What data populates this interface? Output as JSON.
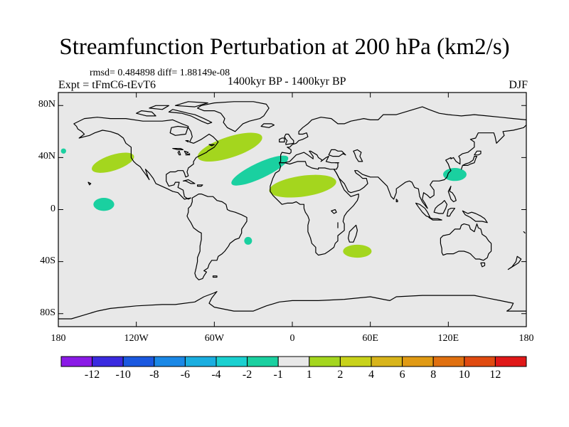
{
  "title": "Streamfunction Perturbation at 200 hPa (km2/s)",
  "subtitle": "rmsd= 0.484898 diff= 1.88149e-08",
  "left_label": "Expt = tFmC6-tEvT6",
  "center_label": "1400kyr BP - 1400kyr BP",
  "right_label": "DJF",
  "map": {
    "projection": "cylindrical equidistant",
    "lon_range": [
      -180,
      180
    ],
    "lat_range": [
      -90,
      90
    ],
    "lat_ticks": [
      {
        "value": 80,
        "label": "80N"
      },
      {
        "value": 40,
        "label": "40N"
      },
      {
        "value": 0,
        "label": "0"
      },
      {
        "value": -40,
        "label": "40S"
      },
      {
        "value": -80,
        "label": "80S"
      }
    ],
    "lon_ticks": [
      {
        "value": -180,
        "label": "180"
      },
      {
        "value": -120,
        "label": "120W"
      },
      {
        "value": -60,
        "label": "60W"
      },
      {
        "value": 0,
        "label": "0"
      },
      {
        "value": 60,
        "label": "60E"
      },
      {
        "value": 120,
        "label": "120E"
      },
      {
        "value": 180,
        "label": "180"
      }
    ],
    "background_color": "#e8e8e8",
    "anomalies": [
      {
        "name": "north-pacific-positive",
        "lon": -138,
        "lat": 36,
        "rlon": 17,
        "rlat": 6,
        "rot": -18,
        "color": "#a4d61e"
      },
      {
        "name": "north-atlantic-positive",
        "lon": -48,
        "lat": 48,
        "rlon": 26,
        "rlat": 8,
        "rot": -18,
        "color": "#a4d61e"
      },
      {
        "name": "north-africa-positive",
        "lon": 8,
        "lat": 18,
        "rlon": 26,
        "rlat": 8,
        "rot": -8,
        "color": "#a4d61e"
      },
      {
        "name": "madagascar-positive",
        "lon": 50,
        "lat": -32,
        "rlon": 11,
        "rlat": 5,
        "rot": 0,
        "color": "#a4d61e"
      },
      {
        "name": "subtropical-atlantic-negative",
        "lon": -25,
        "lat": 30,
        "rlon": 24,
        "rlat": 6,
        "rot": -25,
        "color": "#1ad0a0"
      },
      {
        "name": "east-asia-negative",
        "lon": 125,
        "lat": 27,
        "rlon": 9,
        "rlat": 5,
        "rot": 0,
        "color": "#1ad0a0"
      },
      {
        "name": "tropical-pacific-negative",
        "lon": -145,
        "lat": 4,
        "rlon": 8,
        "rlat": 5,
        "rot": 0,
        "color": "#1ad0a0"
      },
      {
        "name": "south-pacific-negative-small",
        "lon": -34,
        "lat": -24,
        "rlon": 3,
        "rlat": 3,
        "rot": 0,
        "color": "#1ad0a0"
      },
      {
        "name": "east-pacific-negative-small",
        "lon": -176,
        "lat": 45,
        "rlon": 2,
        "rlat": 2,
        "rot": 0,
        "color": "#1ad0a0"
      }
    ]
  },
  "colorbar": {
    "colors": [
      "#8a1ae6",
      "#3a2ae0",
      "#1a58e0",
      "#1a88e6",
      "#1aaee0",
      "#1ad0d0",
      "#1ad0a0",
      "#e8e8e8",
      "#a4d61e",
      "#c8d21a",
      "#d8b41a",
      "#e09a14",
      "#e07010",
      "#e04a10",
      "#e01818"
    ],
    "labels": [
      "-12",
      "-10",
      "-8",
      "-6",
      "-4",
      "-2",
      "-1",
      "1",
      "2",
      "4",
      "6",
      "8",
      "10",
      "12"
    ]
  }
}
